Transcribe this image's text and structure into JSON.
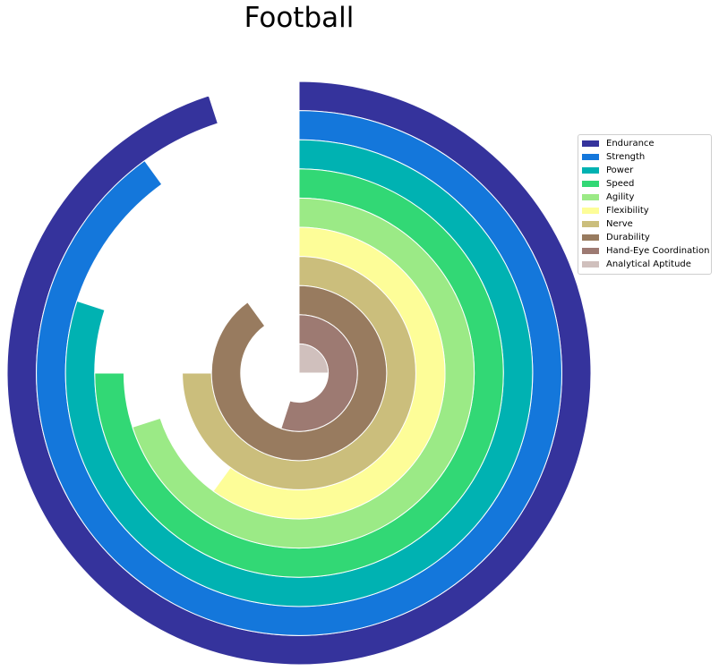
{
  "chart_data": {
    "type": "radial-bar",
    "title": "Football",
    "categories": [
      "Endurance",
      "Strength",
      "Power",
      "Speed",
      "Agility",
      "Flexibility",
      "Nerve",
      "Durability",
      "Hand-Eye Coordination",
      "Analytical Aptitude"
    ],
    "values": [
      95,
      90,
      80,
      75,
      70,
      60,
      75,
      90,
      55,
      25
    ],
    "max_value": 100,
    "colors": [
      "#35339c",
      "#1477db",
      "#00b2b2",
      "#32d875",
      "#9bea86",
      "#fdfd98",
      "#cbbe7c",
      "#987b5f",
      "#9d7a72",
      "#d0c0bd"
    ],
    "legend_position": "right",
    "grid": false
  }
}
